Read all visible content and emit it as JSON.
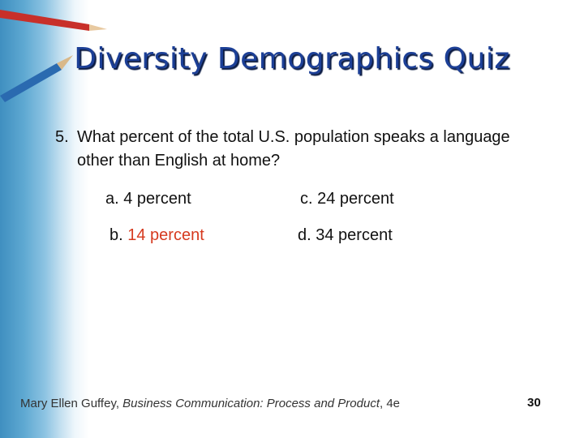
{
  "title": "Diversity Demographics Quiz",
  "question": {
    "number": "5.",
    "text": "What percent of the total U.S. population speaks a language other than English at home?"
  },
  "options": [
    {
      "letter": "a.",
      "text": "4 percent"
    },
    {
      "letter": "b.",
      "text": "14 percent",
      "correct": true
    },
    {
      "letter": "c.",
      "text": "24 percent"
    },
    {
      "letter": "d.",
      "text": "34 percent"
    }
  ],
  "footer": {
    "author": "Mary Ellen Guffey,",
    "book": "Business Communication: Process and Product",
    "edition": ", 4e"
  },
  "page_number": "30"
}
